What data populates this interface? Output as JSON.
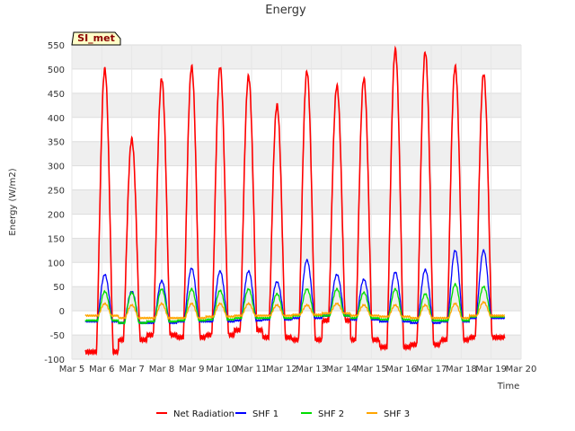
{
  "chart_data": {
    "type": "line",
    "title": "Energy",
    "xlabel": "Time",
    "ylabel": "Energy (W/m2)",
    "badge": "SI_met",
    "xlim": [
      5,
      20
    ],
    "ylim": [
      -100,
      550
    ],
    "x_ticks": [
      5,
      6,
      7,
      8,
      9,
      10,
      11,
      12,
      13,
      14,
      15,
      16,
      17,
      18,
      19,
      20
    ],
    "x_tick_labels": [
      "Mar 5",
      "Mar 6",
      "Mar 7",
      "Mar 8",
      "Mar 9",
      "Mar 10",
      "Mar 11",
      "Mar 12",
      "Mar 13",
      "Mar 14",
      "Mar 15",
      "Mar 16",
      "Mar 17",
      "Mar 18",
      "Mar 19",
      "Mar 20"
    ],
    "y_ticks": [
      -100,
      -50,
      0,
      50,
      100,
      150,
      200,
      250,
      300,
      350,
      400,
      450,
      500,
      550
    ],
    "grid": true,
    "legend_position": "bottom",
    "day_centers": [
      6.1,
      7.0,
      8.0,
      9.0,
      9.95,
      10.9,
      11.85,
      12.85,
      13.85,
      14.75,
      15.8,
      16.8,
      17.8,
      18.75
    ],
    "series": [
      {
        "name": "Net Radiation",
        "color": "#ff0000",
        "night": [
          -85,
          -60,
          -50,
          -55,
          -50,
          -40,
          -55,
          -60,
          -20,
          -60,
          -75,
          -70,
          -60,
          -55
        ],
        "peak": [
          500,
          355,
          480,
          505,
          505,
          485,
          425,
          495,
          465,
          480,
          540,
          535,
          505,
          490
        ]
      },
      {
        "name": "SHF 1",
        "color": "#0000ff",
        "night": [
          -22,
          -25,
          -25,
          -22,
          -22,
          -20,
          -18,
          -15,
          -10,
          -18,
          -22,
          -25,
          -22,
          -15
        ],
        "peak": [
          75,
          40,
          62,
          88,
          82,
          82,
          60,
          105,
          75,
          65,
          80,
          85,
          125,
          125
        ]
      },
      {
        "name": "SHF 2",
        "color": "#00dd00",
        "night": [
          -20,
          -25,
          -22,
          -20,
          -18,
          -15,
          -15,
          -10,
          -10,
          -15,
          -18,
          -20,
          -20,
          -12
        ],
        "peak": [
          40,
          38,
          45,
          45,
          42,
          45,
          35,
          45,
          45,
          38,
          45,
          35,
          55,
          50
        ]
      },
      {
        "name": "SHF 3",
        "color": "#ffa500",
        "night": [
          -10,
          -15,
          -15,
          -15,
          -12,
          -10,
          -10,
          -8,
          -5,
          -10,
          -12,
          -15,
          -15,
          -10
        ],
        "peak": [
          15,
          12,
          15,
          15,
          15,
          15,
          12,
          12,
          15,
          12,
          12,
          12,
          15,
          18
        ]
      }
    ]
  }
}
